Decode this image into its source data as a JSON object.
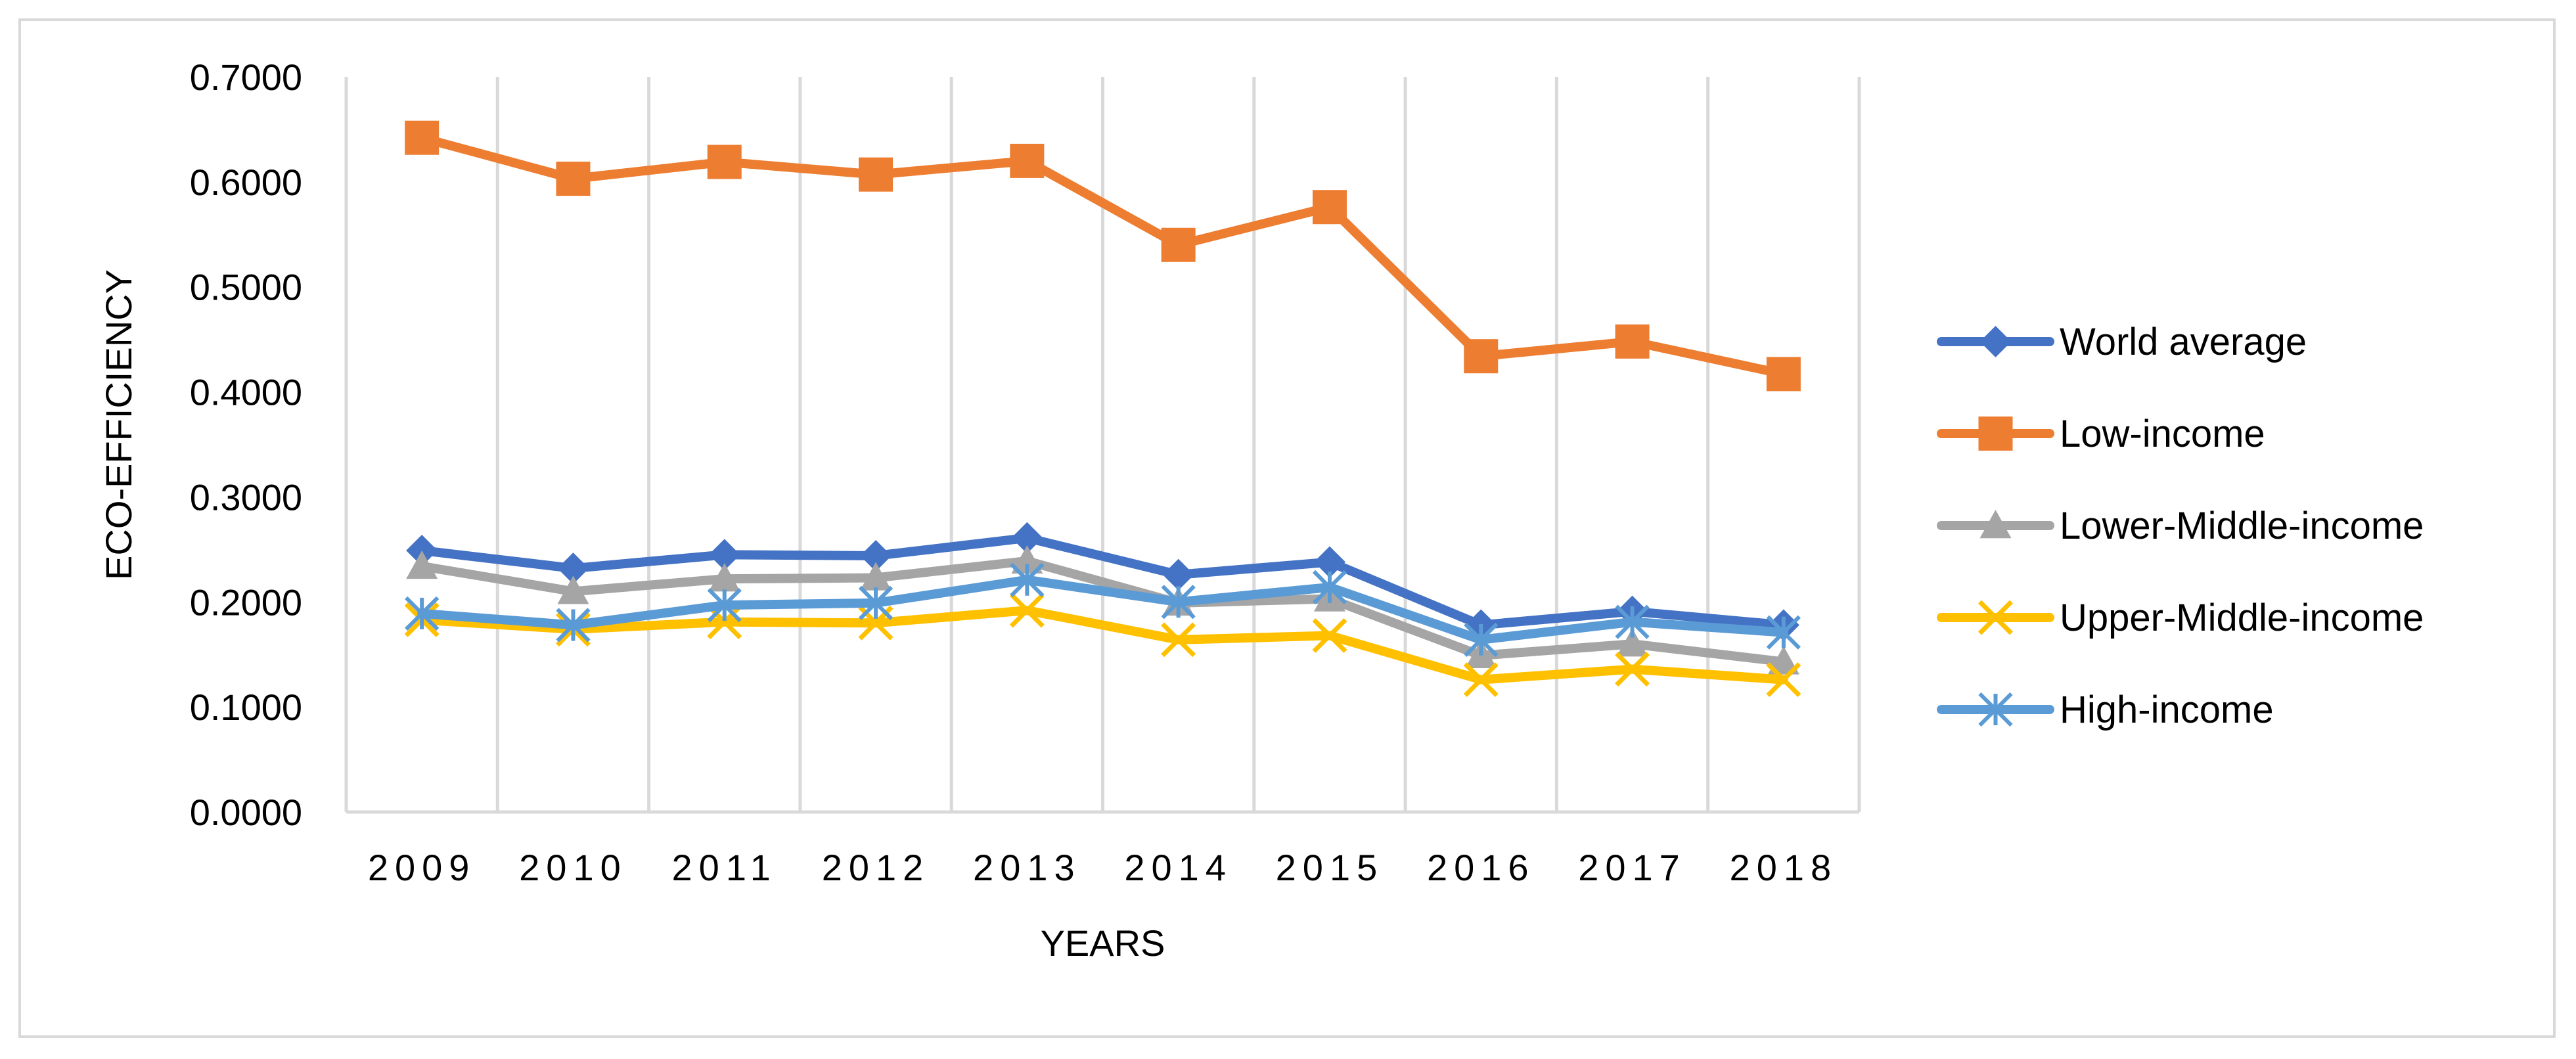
{
  "chart_data": {
    "type": "line",
    "title": "",
    "xlabel": "YEARS",
    "ylabel": "ECO-EFFICIENCY",
    "ylim": [
      0,
      0.7
    ],
    "yticks": [
      0,
      0.1,
      0.2,
      0.3,
      0.4,
      0.5,
      0.6,
      0.7
    ],
    "ytick_labels": [
      "0.0000",
      "0.1000",
      "0.2000",
      "0.3000",
      "0.4000",
      "0.5000",
      "0.6000",
      "0.7000"
    ],
    "grid": "vertical",
    "legend_position": "right",
    "categories": [
      "2009",
      "2010",
      "2011",
      "2012",
      "2013",
      "2014",
      "2015",
      "2016",
      "2017",
      "2018"
    ],
    "series": [
      {
        "name": "World average",
        "color": "#4472C4",
        "marker": "diamond",
        "values": [
          0.249,
          0.232,
          0.245,
          0.244,
          0.261,
          0.226,
          0.238,
          0.178,
          0.191,
          0.178
        ]
      },
      {
        "name": "Low-income",
        "color": "#ED7D31",
        "marker": "square",
        "values": [
          0.642,
          0.603,
          0.619,
          0.607,
          0.62,
          0.54,
          0.576,
          0.434,
          0.448,
          0.417
        ]
      },
      {
        "name": "Lower-Middle-income",
        "color": "#A5A5A5",
        "marker": "triangle",
        "values": [
          0.234,
          0.21,
          0.222,
          0.223,
          0.239,
          0.199,
          0.203,
          0.149,
          0.16,
          0.143
        ]
      },
      {
        "name": "Upper-Middle-income",
        "color": "#FFC000",
        "marker": "x",
        "values": [
          0.183,
          0.174,
          0.181,
          0.18,
          0.192,
          0.164,
          0.168,
          0.126,
          0.136,
          0.126
        ]
      },
      {
        "name": "High-income",
        "color": "#5B9BD5",
        "marker": "asterisk",
        "values": [
          0.189,
          0.178,
          0.197,
          0.199,
          0.221,
          0.2,
          0.214,
          0.164,
          0.181,
          0.171
        ]
      }
    ]
  }
}
